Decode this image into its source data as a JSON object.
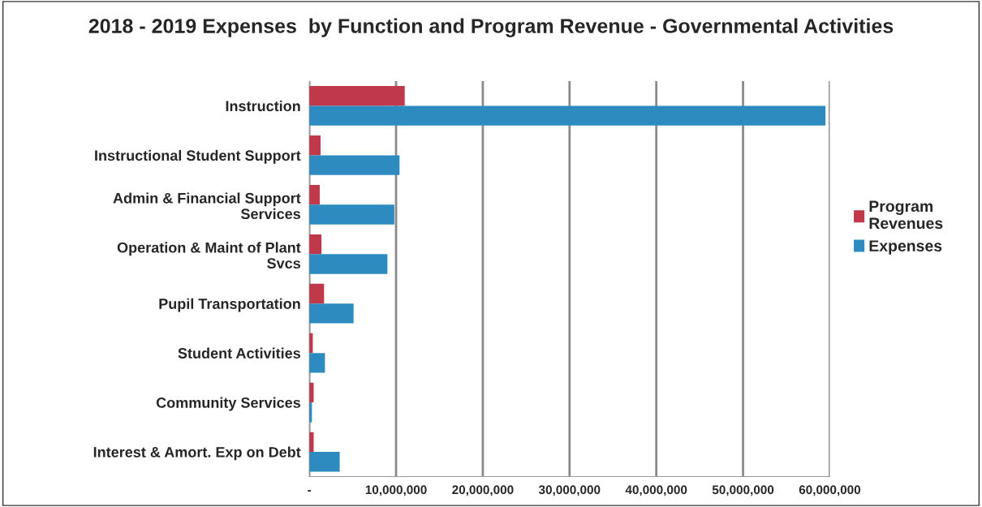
{
  "chart_data": {
    "type": "bar",
    "orientation": "horizontal",
    "title": "2018 - 2019 Expenses  by Function and Program Revenue - Governmental Activities",
    "categories": [
      "Instruction",
      "Instructional Student Support",
      "Admin & Financial Support\nServices",
      "Operation & Maint of Plant\nSvcs",
      "Pupil Transportation",
      "Student Activities",
      "Community Services",
      "Interest & Amort. Exp on Debt"
    ],
    "series": [
      {
        "name": "Program\nRevenues",
        "color": "#c0394b",
        "values": [
          11000000,
          1300000,
          1200000,
          1400000,
          1700000,
          400000,
          500000,
          500000
        ]
      },
      {
        "name": "Expenses",
        "color": "#2e8bc0",
        "values": [
          59500000,
          10400000,
          9800000,
          9000000,
          5100000,
          1800000,
          300000,
          3500000
        ]
      }
    ],
    "xlim": [
      0,
      60000000
    ],
    "xticks": [
      {
        "value": 0,
        "label": "-"
      },
      {
        "value": 10000000,
        "label": "10,000,000"
      },
      {
        "value": 20000000,
        "label": "20,000,000"
      },
      {
        "value": 30000000,
        "label": "30,000,000"
      },
      {
        "value": 40000000,
        "label": "40,000,000"
      },
      {
        "value": 50000000,
        "label": "50,000,000"
      },
      {
        "value": 60000000,
        "label": "60,000,000"
      }
    ],
    "grid": "x",
    "legend": "right"
  }
}
